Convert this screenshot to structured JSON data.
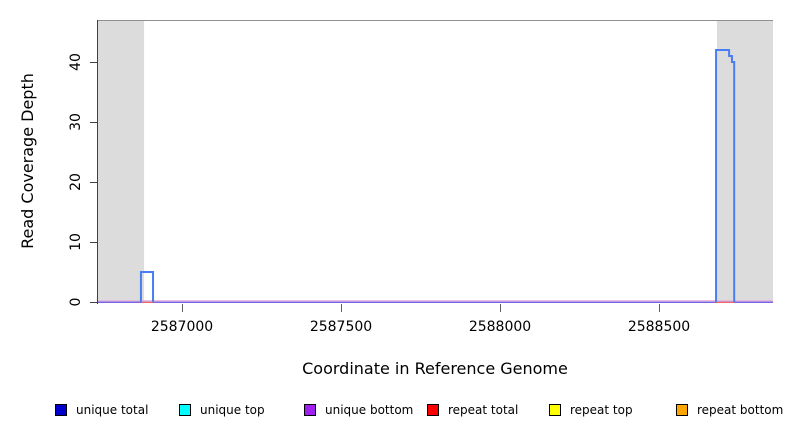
{
  "figure": {
    "x_axis_title": "Coordinate in Reference Genome",
    "y_axis_title": "Read Coverage Depth"
  },
  "axes": {
    "x_tick_labels": [
      "2587000",
      "2587500",
      "2588000",
      "2588500"
    ],
    "y_tick_labels": [
      "0",
      "10",
      "20",
      "30",
      "40"
    ]
  },
  "legend": [
    {
      "label": "unique total",
      "color": "#0000cd"
    },
    {
      "label": "unique top",
      "color": "#00ffff"
    },
    {
      "label": "unique bottom",
      "color": "#a020f0"
    },
    {
      "label": "repeat total",
      "color": "#ff0000"
    },
    {
      "label": "repeat top",
      "color": "#ffff00"
    },
    {
      "label": "repeat bottom",
      "color": "#ffa500"
    }
  ],
  "chart_data": {
    "type": "line",
    "title": "",
    "xlabel": "Coordinate in Reference Genome",
    "ylabel": "Read Coverage Depth",
    "xlim": [
      2586736,
      2588858
    ],
    "ylim": [
      0,
      47
    ],
    "x_ticks": [
      2587000,
      2587500,
      2588000,
      2588500
    ],
    "y_ticks": [
      0,
      10,
      20,
      30,
      40
    ],
    "grid": false,
    "legend_position": "bottom",
    "frame_color": "#909090",
    "background_shade_color": "#dcdcdc",
    "shaded_regions": [
      {
        "start": 2586736,
        "end": 2586881
      },
      {
        "start": 2588682,
        "end": 2588858
      }
    ],
    "series": [
      {
        "name": "unique-bottom-zero-pink-fringe",
        "color": "#e4b6da",
        "width": 1.2,
        "dy": -1.3,
        "segments": [
          [
            [
              2586736,
              0
            ],
            [
              2588858,
              0
            ]
          ]
        ]
      },
      {
        "name": "unique-bottom-zero-baseline",
        "color": "#7b63e6",
        "width": 1.7,
        "dy": 0.3,
        "segments": [
          [
            [
              2586736,
              0
            ],
            [
              2588858,
              0
            ]
          ]
        ]
      },
      {
        "name": "repeat-total-zero-segments",
        "color": "#f06868",
        "width": 1.7,
        "dy": 0.6,
        "segments": [
          [
            [
              2586871,
              0
            ],
            [
              2586909,
              0
            ]
          ],
          [
            [
              2588679,
              0
            ],
            [
              2588736,
              0
            ]
          ]
        ]
      },
      {
        "name": "unique-coverage-peaks",
        "color": "#4a7df2",
        "width": 2,
        "dy": 0,
        "segments": [
          [
            [
              2586871,
              0
            ],
            [
              2586871,
              5
            ],
            [
              2586909,
              5
            ],
            [
              2586909,
              0
            ]
          ],
          [
            [
              2588679,
              0
            ],
            [
              2588679,
              42
            ],
            [
              2588720,
              42
            ],
            [
              2588720,
              41
            ],
            [
              2588729,
              41
            ],
            [
              2588729,
              40
            ],
            [
              2588736,
              40
            ],
            [
              2588736,
              0
            ]
          ]
        ]
      }
    ]
  }
}
